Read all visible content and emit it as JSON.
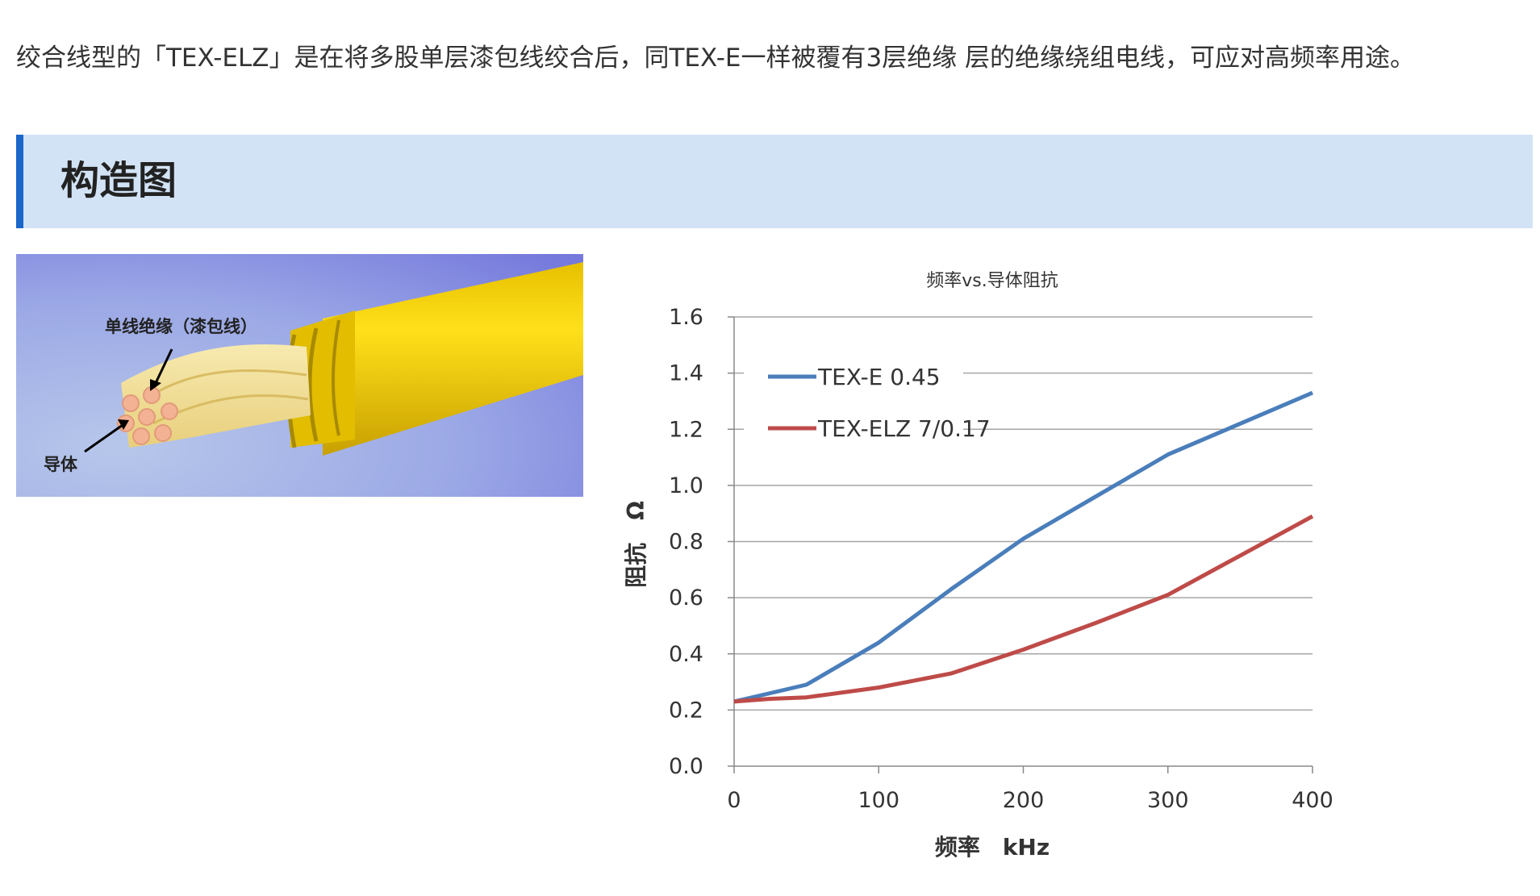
{
  "intro_text": "绞合线型的「TEX-ELZ」是在将多股单层漆包线绞合后，同TEX-E一样被覆有3层绝缘 层的绝缘绕组电线，可应对高频率用途。",
  "section": {
    "title": "构造图"
  },
  "illustration": {
    "label_insulation": "单线绝缘（漆包线）",
    "label_conductor": "导体"
  },
  "colors": {
    "accent": "#1a66c9",
    "header_bg": "#d3e3f6",
    "series_blue": "#4a7ebb",
    "series_red": "#be4b48"
  },
  "chart_data": {
    "type": "line",
    "title": "频率vs.导体阻抗",
    "xlabel": "频率　kHz",
    "ylabel": "阻抗　Ω",
    "xlim": [
      0,
      400
    ],
    "ylim": [
      0,
      1.6
    ],
    "xticks": [
      0,
      100,
      200,
      300,
      400
    ],
    "xtick_labels": [
      "0",
      "100",
      "200",
      "300",
      "400"
    ],
    "yticks": [
      0,
      0.2,
      0.4,
      0.6,
      0.8,
      1.0,
      1.2,
      1.4,
      1.6
    ],
    "ytick_labels": [
      "0.0",
      "0.2",
      "0.4",
      "0.6",
      "0.8",
      "1.0",
      "1.2",
      "1.4",
      "1.6"
    ],
    "grid": "horizontal",
    "legend": "upper-left",
    "series": [
      {
        "name": "TEX-E 0.45",
        "color": "#4a7ebb",
        "x": [
          0,
          25,
          50,
          60,
          100,
          150,
          200,
          250,
          300,
          350,
          400
        ],
        "y": [
          0.23,
          0.26,
          0.29,
          0.32,
          0.44,
          0.63,
          0.81,
          0.96,
          1.11,
          1.22,
          1.33
        ]
      },
      {
        "name": "TEX-ELZ 7/0.17",
        "color": "#be4b48",
        "x": [
          0,
          25,
          50,
          100,
          150,
          200,
          250,
          300,
          350,
          400
        ],
        "y": [
          0.23,
          0.24,
          0.245,
          0.28,
          0.33,
          0.415,
          0.51,
          0.61,
          0.75,
          0.89
        ]
      }
    ]
  }
}
